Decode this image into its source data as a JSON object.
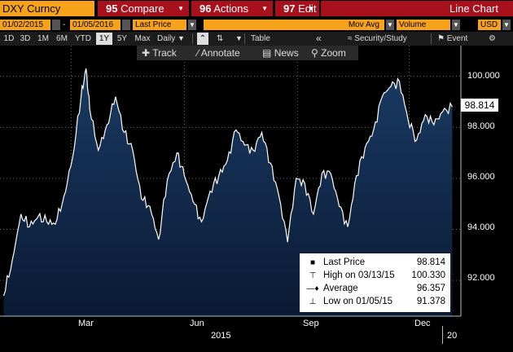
{
  "header": {
    "ticker": "DXY Curncy",
    "compare": {
      "num": "95",
      "label": "Compare"
    },
    "actions": {
      "num": "96",
      "label": "Actions"
    },
    "edit": {
      "num": "97",
      "label": "Edit"
    },
    "chart_type": "Line Chart"
  },
  "fields": {
    "start_date": "01/02/2015",
    "end_date": "01/05/2016",
    "price_field": "Last Price",
    "mov_avg_label": "Mov Avg",
    "volume_label": "Volume",
    "currency": "USD"
  },
  "periods": [
    "1D",
    "3D",
    "1M",
    "6M",
    "YTD",
    "1Y",
    "5Y",
    "Max"
  ],
  "active_period": "1Y",
  "frequency": "Daily",
  "tools": {
    "table": "Table",
    "back": "«",
    "security_study": "Security/Study",
    "event": "Event"
  },
  "chart_toolbar": {
    "track": "Track",
    "annotate": "Annotate",
    "news": "News",
    "zoom": "Zoom"
  },
  "legend": {
    "last_price_label": "Last Price",
    "last_price_value": "98.814",
    "high_label": "High on 03/13/15",
    "high_value": "100.330",
    "average_label": "Average",
    "average_value": "96.357",
    "low_label": "Low on 01/05/15",
    "low_value": "91.378"
  },
  "last_price_tag": "98.814",
  "colors": {
    "accent_orange": "#f7a21b",
    "menu_red": "#a8101c",
    "area_fill_top": "#1a3a63",
    "area_fill_bottom": "#0a1a33",
    "line": "#ffffff"
  },
  "chart_data": {
    "type": "area",
    "title": "",
    "xlabel": "2015",
    "ylabel": "",
    "x_tick_labels": [
      "Mar",
      "Jun",
      "Sep",
      "Dec",
      "20"
    ],
    "y_tick_labels": [
      "92.000",
      "94.000",
      "96.000",
      "98.000",
      "100.000"
    ],
    "ylim": [
      90.6,
      101.2
    ],
    "series": [
      {
        "name": "Last Price",
        "x": [
          "2015-01-05",
          "2015-01-12",
          "2015-01-19",
          "2015-01-26",
          "2015-02-02",
          "2015-02-09",
          "2015-02-16",
          "2015-02-23",
          "2015-03-02",
          "2015-03-09",
          "2015-03-13",
          "2015-03-16",
          "2015-03-23",
          "2015-03-30",
          "2015-04-06",
          "2015-04-13",
          "2015-04-20",
          "2015-04-27",
          "2015-05-04",
          "2015-05-11",
          "2015-05-18",
          "2015-05-26",
          "2015-06-01",
          "2015-06-08",
          "2015-06-15",
          "2015-06-22",
          "2015-06-29",
          "2015-07-06",
          "2015-07-13",
          "2015-07-20",
          "2015-07-27",
          "2015-08-03",
          "2015-08-10",
          "2015-08-17",
          "2015-08-24",
          "2015-08-31",
          "2015-09-07",
          "2015-09-14",
          "2015-09-21",
          "2015-09-28",
          "2015-10-05",
          "2015-10-12",
          "2015-10-19",
          "2015-10-26",
          "2015-11-02",
          "2015-11-09",
          "2015-11-16",
          "2015-11-23",
          "2015-11-30",
          "2015-12-07",
          "2015-12-14",
          "2015-12-21",
          "2015-12-28",
          "2016-01-05"
        ],
        "values": [
          91.4,
          92.8,
          94.6,
          94.1,
          94.5,
          94.3,
          94.2,
          95.3,
          96.8,
          99.2,
          100.3,
          98.7,
          97.1,
          98.1,
          99.2,
          97.8,
          97.1,
          95.2,
          94.9,
          93.6,
          95.9,
          97.0,
          96.1,
          95.1,
          94.3,
          95.5,
          96.1,
          96.7,
          97.9,
          97.3,
          97.1,
          97.8,
          96.6,
          95.3,
          93.5,
          96.0,
          95.8,
          94.6,
          96.2,
          96.2,
          94.9,
          94.1,
          96.1,
          97.2,
          97.9,
          99.2,
          99.6,
          99.8,
          98.3,
          97.5,
          98.5,
          98.1,
          98.6,
          98.8
        ]
      }
    ]
  }
}
